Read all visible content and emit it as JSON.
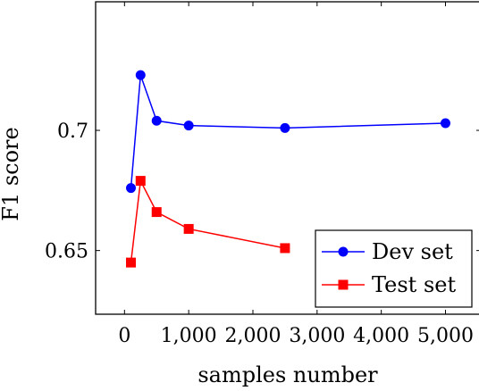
{
  "chart_data": {
    "type": "line",
    "title": "",
    "xlabel": "samples number",
    "ylabel": "F1 score",
    "x": [
      100,
      250,
      500,
      1000,
      2500,
      5000
    ],
    "series": [
      {
        "name": "Dev set",
        "color": "#0000ff",
        "marker": "circle",
        "values": [
          0.676,
          0.723,
          0.704,
          0.702,
          0.701,
          0.703
        ]
      },
      {
        "name": "Test set",
        "color": "#ff0000",
        "marker": "square",
        "values": [
          0.645,
          0.679,
          0.666,
          0.659,
          0.651,
          null
        ]
      }
    ],
    "xlim": [
      -450,
      5550
    ],
    "ylim": [
      0.6235,
      0.7535
    ],
    "x_ticks": [
      0,
      1000,
      2000,
      3000,
      4000,
      5000
    ],
    "x_tick_labels": [
      "0",
      "1,000",
      "2,000",
      "3,000",
      "4,000",
      "5,000"
    ],
    "y_ticks": [
      0.65,
      0.7
    ],
    "y_tick_labels": [
      "0.65",
      "0.7"
    ],
    "grid": false,
    "legend_position": "bottom-right"
  }
}
